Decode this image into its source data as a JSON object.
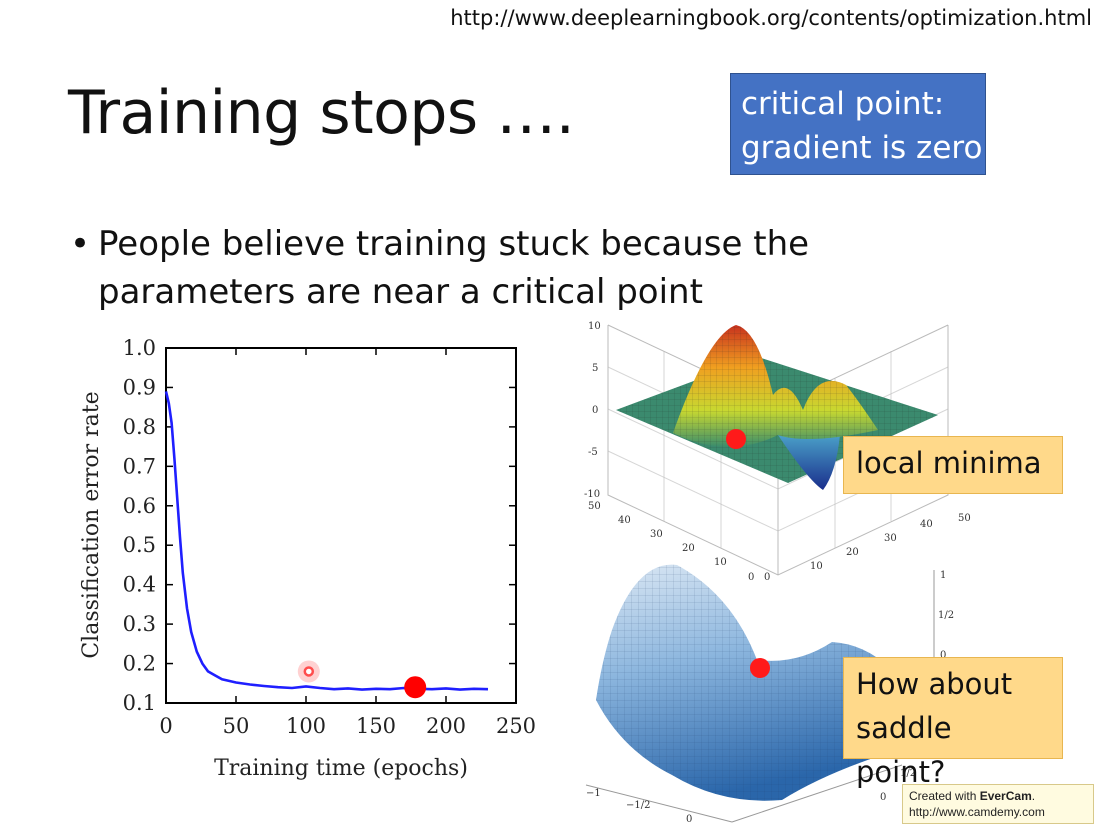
{
  "slide": {
    "url": "http://www.deeplearningbook.org/contents/optimization.html",
    "title": "Training stops ….",
    "callout_critical": [
      "critical point:",
      "gradient is zero"
    ],
    "bullet": [
      "People believe training stuck because the",
      "parameters are near a critical point"
    ],
    "callout_local_minima": "local minima",
    "callout_saddle": [
      "How about",
      "saddle point?"
    ],
    "watermark": {
      "prefix": "Created with ",
      "brand": "EverCam",
      "suffix": ".",
      "url": "http://www.camdemy.com"
    }
  },
  "surface_minima": {
    "z_ticks": [
      "10",
      "5",
      "0",
      "-5",
      "-10"
    ],
    "x_ticks": [
      "50",
      "40",
      "30",
      "20",
      "10",
      "0"
    ],
    "y_ticks": [
      "0",
      "10",
      "20",
      "30",
      "40",
      "50"
    ]
  },
  "surface_saddle": {
    "z_ticks": [
      "1",
      "1/2",
      "0"
    ],
    "x_ticks": [
      "−1",
      "−1/2",
      "0"
    ],
    "y_ticks": [
      "0",
      "1/2"
    ]
  },
  "chart_data": {
    "type": "line",
    "xlabel": "Training time (epochs)",
    "ylabel": "Classification error rate",
    "xlim": [
      0,
      250
    ],
    "ylim": [
      0.1,
      1.0
    ],
    "x_ticks": [
      0,
      50,
      100,
      150,
      200,
      250
    ],
    "y_ticks": [
      "0.1",
      "0.2",
      "0.3",
      "0.4",
      "0.5",
      "0.6",
      "0.7",
      "0.8",
      "0.9",
      "1.0"
    ],
    "series": [
      {
        "color": "#1f1fff",
        "x": [
          0,
          2,
          4,
          6,
          8,
          10,
          12,
          15,
          18,
          22,
          26,
          30,
          35,
          40,
          45,
          50,
          60,
          70,
          80,
          90,
          100,
          110,
          120,
          130,
          140,
          150,
          160,
          170,
          180,
          190,
          200,
          210,
          220,
          230
        ],
        "y": [
          0.89,
          0.86,
          0.81,
          0.72,
          0.62,
          0.52,
          0.43,
          0.34,
          0.28,
          0.23,
          0.2,
          0.18,
          0.17,
          0.16,
          0.156,
          0.152,
          0.147,
          0.143,
          0.14,
          0.138,
          0.142,
          0.138,
          0.135,
          0.137,
          0.134,
          0.136,
          0.135,
          0.138,
          0.136,
          0.135,
          0.137,
          0.134,
          0.136,
          0.135
        ]
      }
    ],
    "markers": [
      {
        "x": 178,
        "y": 0.14,
        "color": "#ff0000"
      },
      {
        "x": 102,
        "y": 0.18,
        "color": "#ff4d4d"
      }
    ],
    "grid": false
  }
}
